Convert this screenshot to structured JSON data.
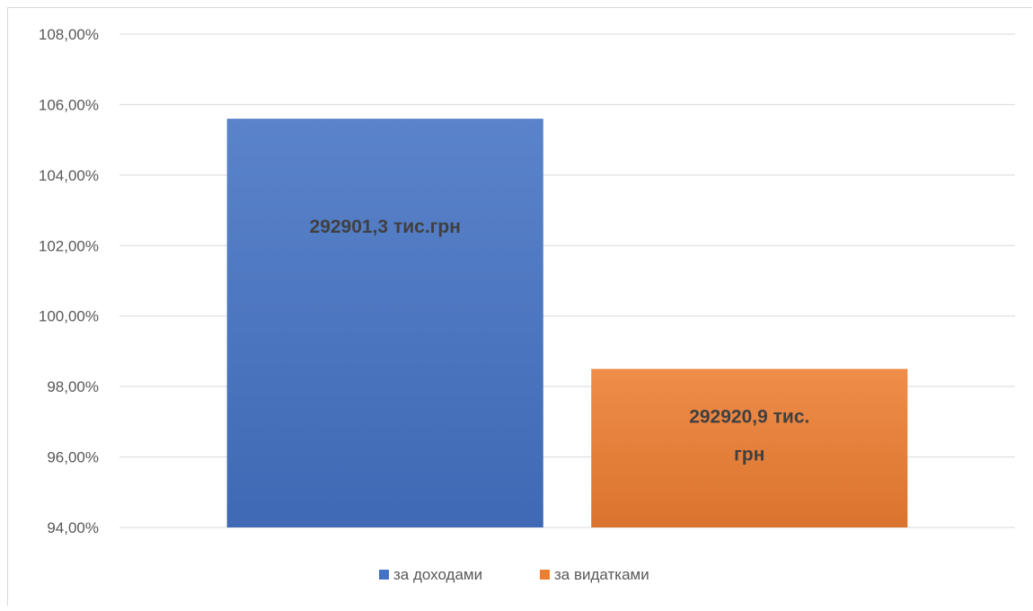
{
  "chart_data": {
    "type": "bar",
    "categories": [
      ""
    ],
    "series": [
      {
        "name": "за доходами",
        "values": [
          105.6
        ],
        "color": "#4472c4",
        "data_label_lines": [
          "292901,3 тис.грн"
        ]
      },
      {
        "name": "за видатками",
        "values": [
          98.5
        ],
        "color": "#ed7d31",
        "data_label_lines": [
          "292920,9 тис.",
          "грн"
        ]
      }
    ],
    "ylim": [
      94,
      108
    ],
    "yticks": [
      94,
      96,
      98,
      100,
      102,
      104,
      106,
      108
    ],
    "ytick_labels": [
      "94,00%",
      "96,00%",
      "98,00%",
      "100,00%",
      "102,00%",
      "104,00%",
      "106,00%",
      "108,00%"
    ],
    "grid": true,
    "legend_position": "bottom",
    "title": "",
    "xlabel": "",
    "ylabel": ""
  }
}
